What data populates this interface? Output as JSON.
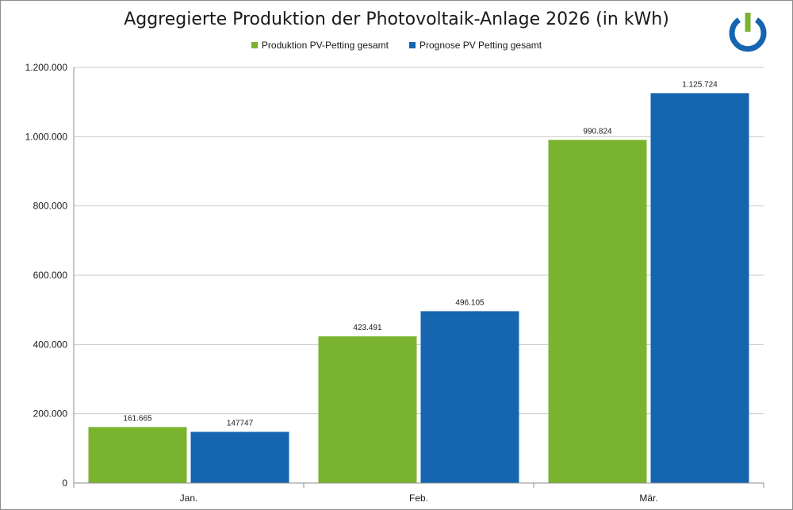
{
  "chart_data": {
    "type": "bar",
    "title": "Aggregierte Produktion der Photovoltaik-Anlage 2026 (in kWh)",
    "categories": [
      "Jan.",
      "Feb.",
      "Mär."
    ],
    "series": [
      {
        "name": "Produktion PV-Petting gesamt",
        "color": "#7ab32e",
        "values": [
          161665,
          423491,
          990824
        ],
        "labels": [
          "161.665",
          "423.491",
          "990.824"
        ]
      },
      {
        "name": "Prognose PV Petting gesamt",
        "color": "#1565b0",
        "values": [
          147747,
          496105,
          1125724
        ],
        "labels": [
          "147747",
          "496.105",
          "1.125.724"
        ]
      }
    ],
    "ylim": [
      0,
      1200000
    ],
    "yticks": [
      0,
      200000,
      400000,
      600000,
      800000,
      1000000,
      1200000
    ],
    "ytick_labels": [
      "0",
      "200.000",
      "400.000",
      "600.000",
      "800.000",
      "1.000.000",
      "1.200.000"
    ],
    "grid": true,
    "legend_position": "top-center",
    "xlabel": "",
    "ylabel": ""
  },
  "logo": {
    "icon": "power-icon",
    "colors": {
      "ring": "#1565b0",
      "stem": "#7ab32e"
    }
  }
}
